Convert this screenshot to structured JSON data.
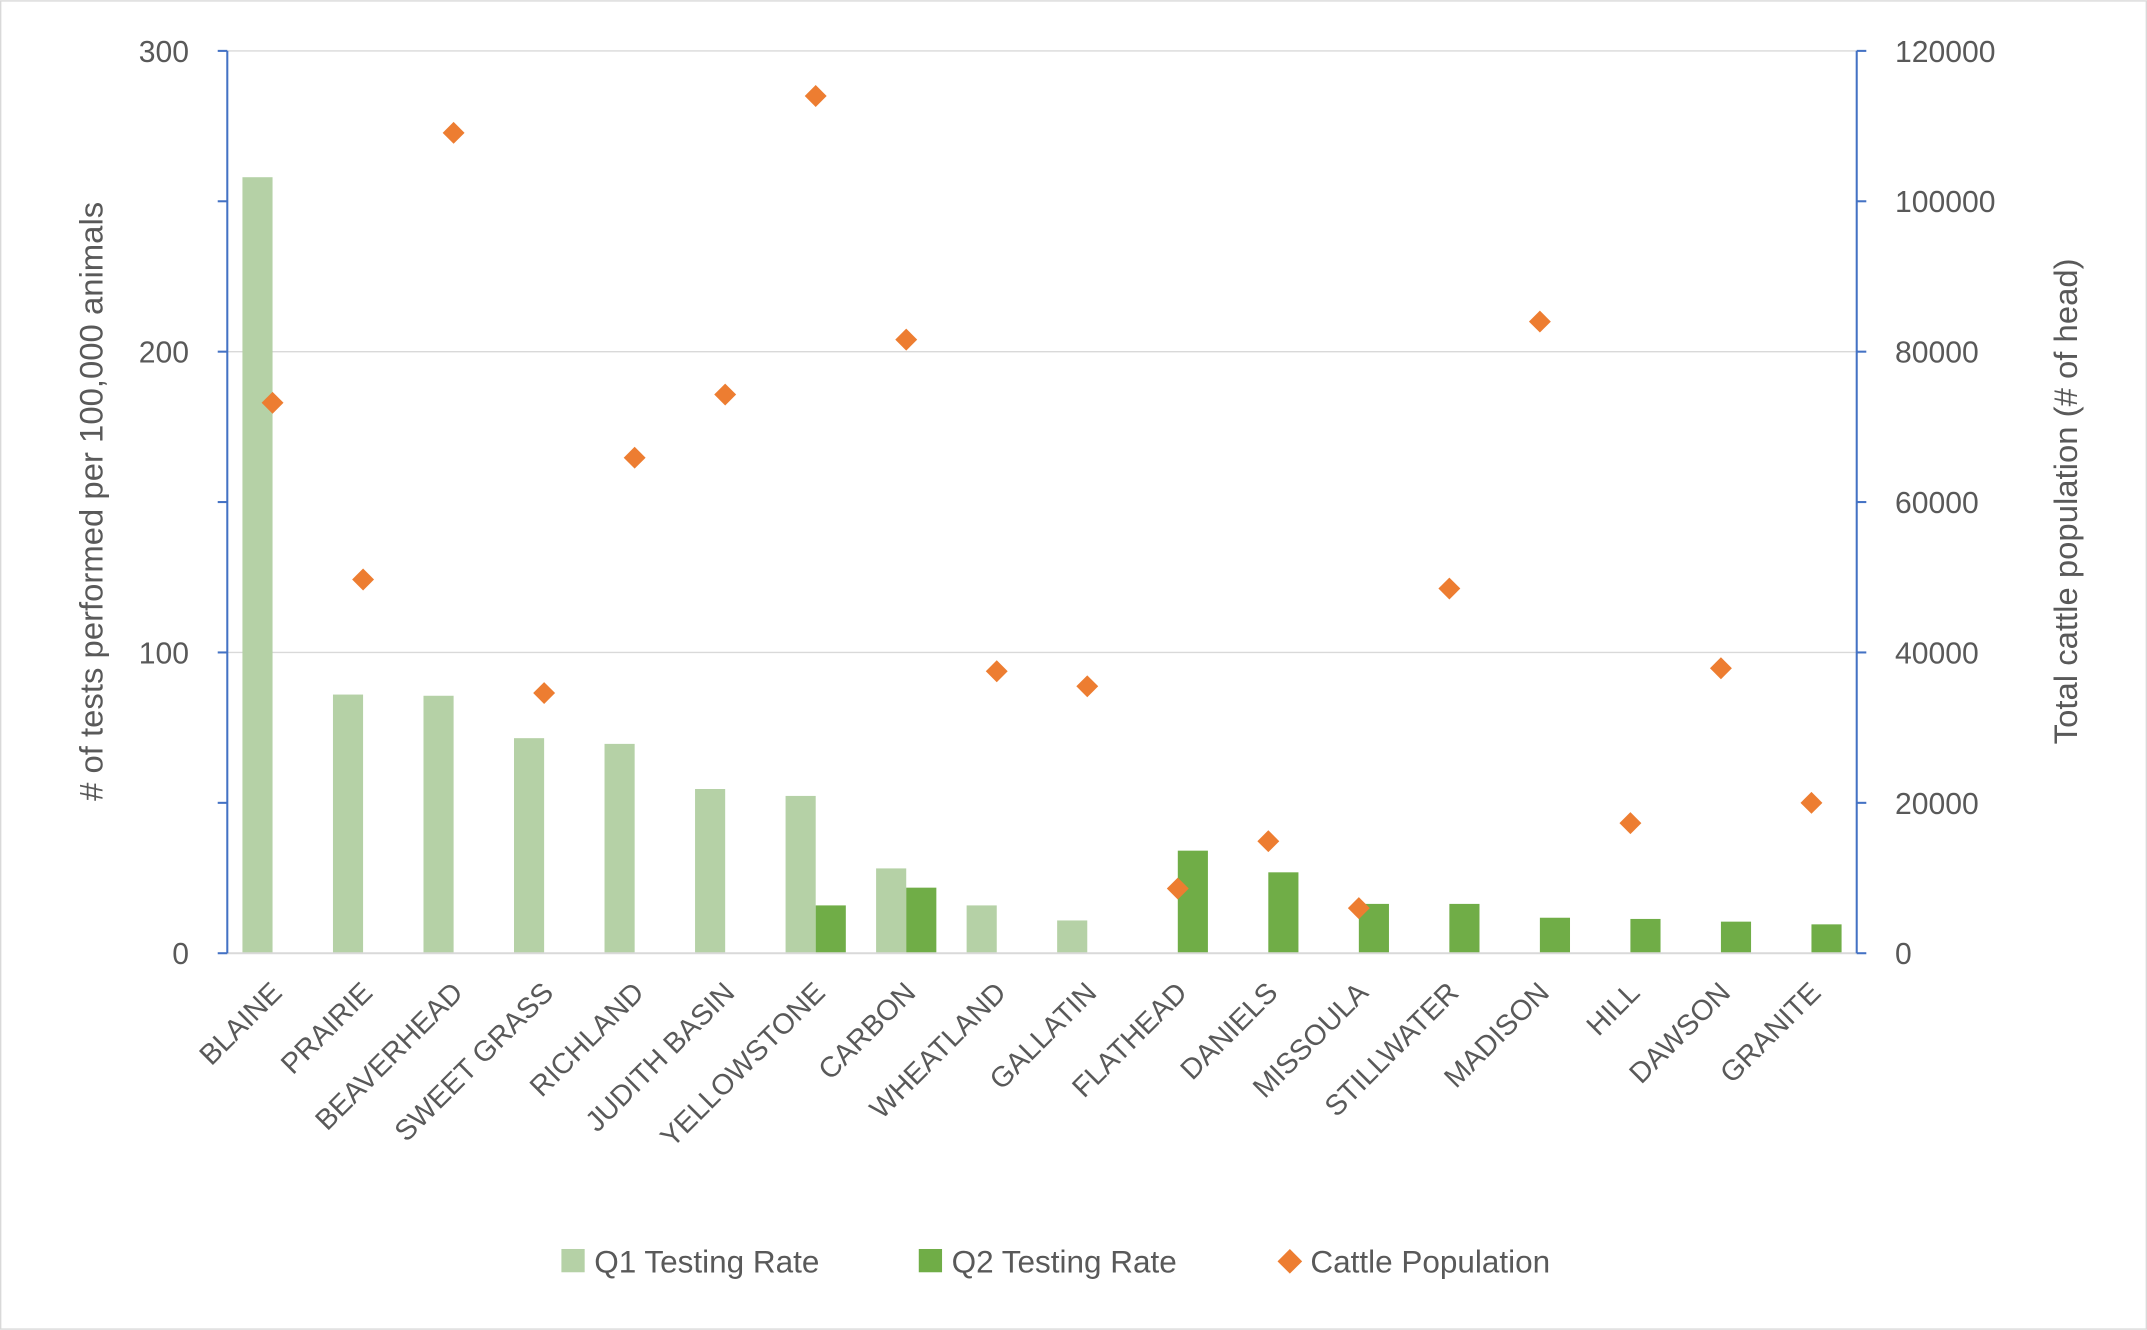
{
  "chart_data": {
    "type": "bar+scatter",
    "categories": [
      "BLAINE",
      "PRAIRIE",
      "BEAVERHEAD",
      "SWEET GRASS",
      "RICHLAND",
      "JUDITH BASIN",
      "YELLOWSTONE",
      "CARBON",
      "WHEATLAND",
      "GALLATIN",
      "FLATHEAD",
      "DANIELS",
      "MISSOULA",
      "STILLWATER",
      "MADISON",
      "HILL",
      "DAWSON",
      "GRANITE"
    ],
    "series": [
      {
        "name": "Q1 Testing Rate",
        "type": "bar",
        "axis": "left",
        "color": "#b5d1a6",
        "values": [
          258,
          86,
          85.6,
          71.5,
          69.6,
          54.6,
          52.3,
          28.2,
          15.9,
          10.9,
          0,
          0,
          0,
          0,
          0,
          0,
          0,
          0
        ]
      },
      {
        "name": "Q2 Testing Rate",
        "type": "bar",
        "axis": "left",
        "color": "#70ad47",
        "values": [
          0,
          0,
          0,
          0,
          0,
          0,
          15.9,
          21.8,
          0,
          0,
          34.1,
          26.9,
          16.4,
          16.4,
          11.8,
          11.4,
          10.5,
          9.6
        ]
      },
      {
        "name": "Cattle Population",
        "type": "scatter",
        "marker": "diamond",
        "axis": "right",
        "color": "#ed7d31",
        "values": [
          73200,
          49700,
          109100,
          34600,
          65900,
          74300,
          114000,
          81600,
          37500,
          35500,
          8600,
          14900,
          6000,
          48500,
          84000,
          17300,
          37900,
          20000
        ]
      }
    ],
    "ylabel": "# of tests performed per 100,000 animals",
    "y2label": "Total cattle population (# of head)",
    "ylim": [
      0,
      300
    ],
    "y2lim": [
      0,
      120000
    ],
    "yticks": [
      "0",
      "100",
      "200",
      "300"
    ],
    "y2ticks": [
      "0",
      "20000",
      "40000",
      "60000",
      "80000",
      "100000",
      "120000"
    ],
    "grid": true,
    "legend": "bottom",
    "axis_color": "#4472c4"
  }
}
